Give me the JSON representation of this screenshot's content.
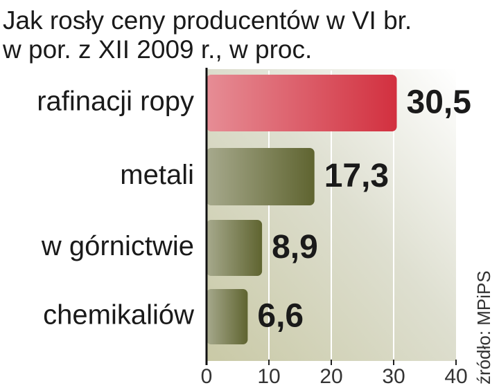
{
  "chart_data": {
    "type": "bar",
    "orientation": "horizontal",
    "title": [
      "Jak rosły ceny producentów w VI br.",
      "w por. z XII 2009 r., w proc."
    ],
    "categories": [
      "rafinacji ropy",
      "metali",
      "w górnictwie",
      "chemikaliów"
    ],
    "values": [
      30.5,
      17.3,
      8.9,
      6.6
    ],
    "value_labels": [
      "30,5",
      "17,3",
      "8,9",
      "6,6"
    ],
    "colors": [
      "#d2303f",
      "#5f6430",
      "#5f6430",
      "#5f6430"
    ],
    "xlim": [
      0,
      40
    ],
    "xticks": [
      0,
      10,
      20,
      30,
      40
    ],
    "grid": true,
    "source": "źródło: MPiPS"
  }
}
